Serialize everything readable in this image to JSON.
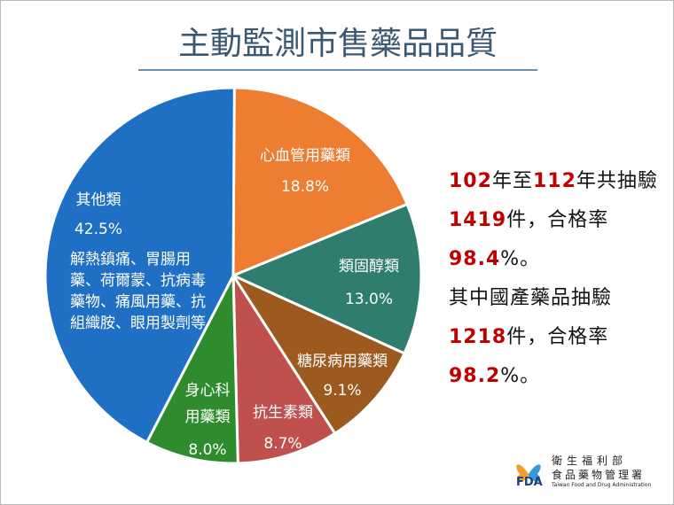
{
  "chart_data": {
    "type": "pie",
    "title": "主動監測市售藥品品質",
    "categories": [
      "心血管用藥類",
      "類固醇類",
      "糖尿病用藥類",
      "抗生素類",
      "身心科用藥類",
      "其他類"
    ],
    "values": [
      18.8,
      13.0,
      9.1,
      8.7,
      8.0,
      42.5
    ],
    "value_labels": [
      "18.8%",
      "13.0%",
      "9.1%",
      "8.7%",
      "8.0%",
      "42.5%"
    ],
    "colors": [
      "#ED7D31",
      "#2E7D6E",
      "#9C5A1E",
      "#C0504D",
      "#2E8B2E",
      "#1F6FC4"
    ],
    "annotations": [
      "解熱鎮痛、胃腸用藥、荷爾蒙、抗病毒藥物、痛風用藥、抗組織胺、眼用製劑等"
    ]
  },
  "summary": [
    [
      {
        "text": "102",
        "color": "#C00000"
      },
      {
        "text": "年至"
      },
      {
        "text": "112",
        "color": "#C00000"
      },
      {
        "text": "年共抽驗"
      },
      {
        "text": "1419",
        "color": "#C00000"
      },
      {
        "text": "件，合格率"
      },
      {
        "text": "98.4",
        "color": "#C00000"
      },
      {
        "text": "%。"
      }
    ],
    [
      {
        "text": "其中國產藥品抽驗"
      },
      {
        "text": "1218",
        "color": "#C00000"
      },
      {
        "text": "件，合格率"
      },
      {
        "text": "98.2",
        "color": "#C00000"
      },
      {
        "text": "%。"
      }
    ]
  ],
  "logo": {
    "mark": "FDA",
    "ministry": "衛生福利部",
    "agency": "食品藥物管理署",
    "english": "Taiwan Food and Drug Administration"
  }
}
